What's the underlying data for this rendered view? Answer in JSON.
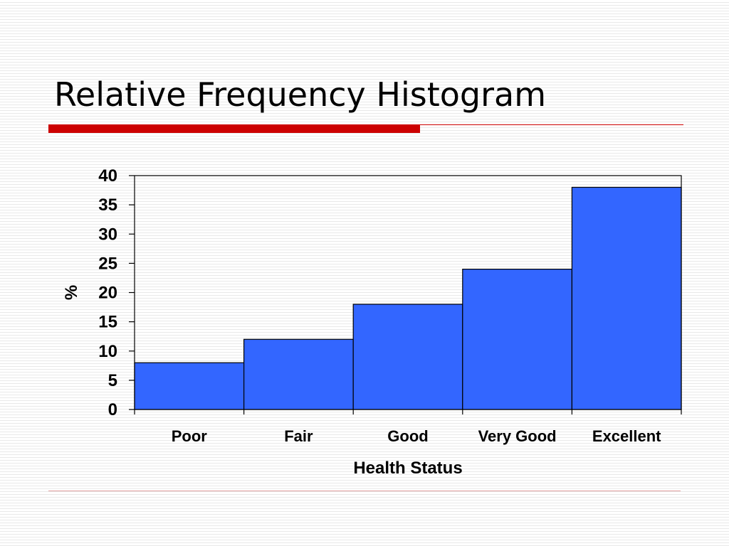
{
  "slide": {
    "title": "Relative Frequency Histogram"
  },
  "colors": {
    "bar_fill": "#3366ff",
    "bar_stroke": "#000000",
    "accent": "#cc0000"
  },
  "chart_data": {
    "type": "bar",
    "title": "",
    "xlabel": "Health Status",
    "ylabel": "%",
    "categories": [
      "Poor",
      "Fair",
      "Good",
      "Very Good",
      "Excellent"
    ],
    "values": [
      8,
      12,
      18,
      24,
      38
    ],
    "ylim": [
      0,
      40
    ],
    "yticks": [
      0,
      5,
      10,
      15,
      20,
      25,
      30,
      35,
      40
    ],
    "grid": false,
    "legend": "none"
  }
}
